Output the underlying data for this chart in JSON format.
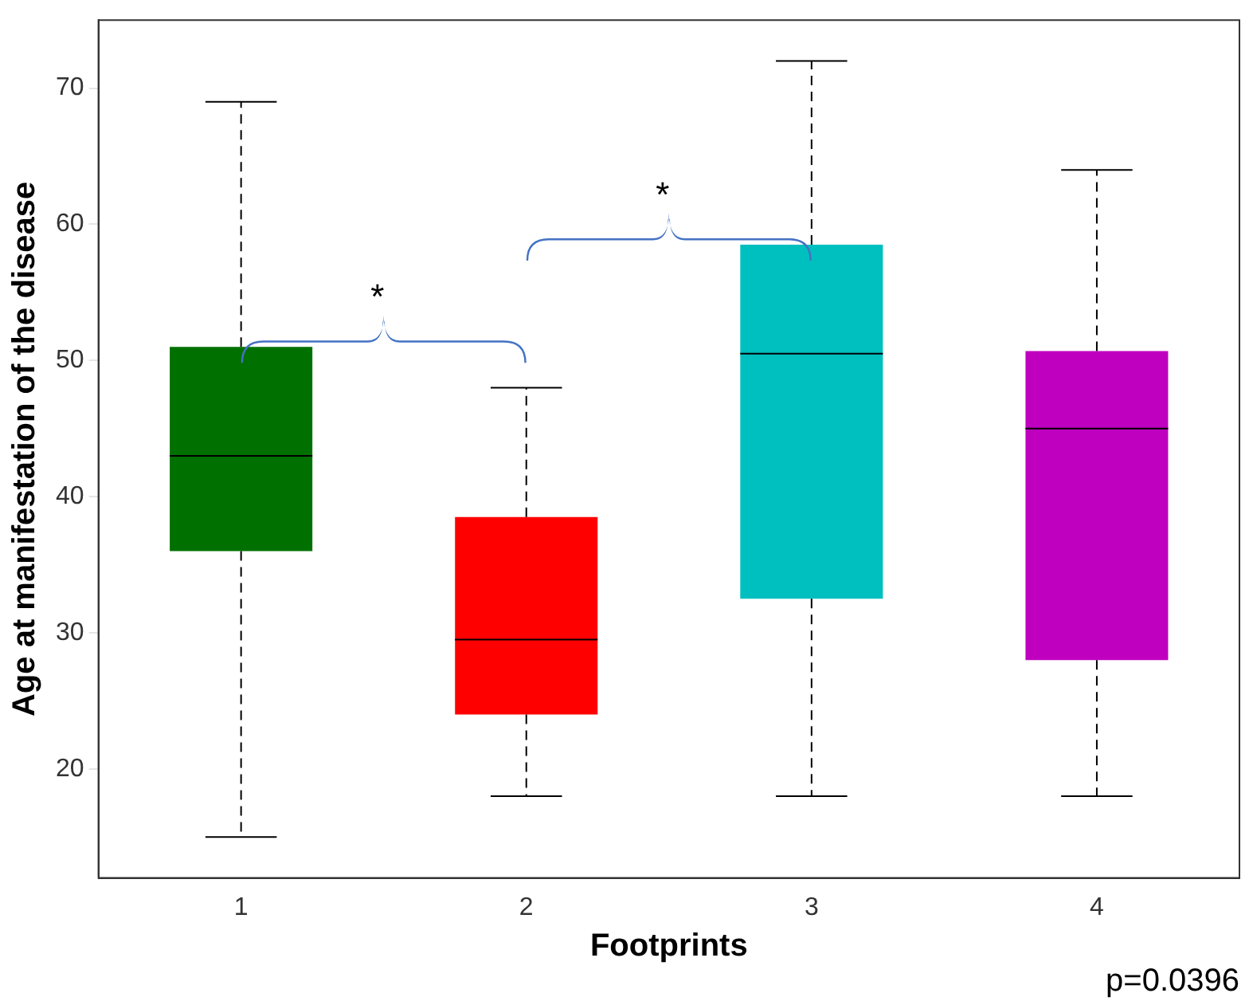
{
  "chart_data": {
    "type": "box",
    "xlabel": "Footprints",
    "ylabel": "Age at manifestation of the disease",
    "categories": [
      "1",
      "2",
      "3",
      "4"
    ],
    "colors": [
      "#007000",
      "#ff0000",
      "#00bfbf",
      "#bf00bf"
    ],
    "boxes": [
      {
        "low": 15,
        "q1": 36,
        "median": 43,
        "q3": 51,
        "high": 69
      },
      {
        "low": 18,
        "q1": 24,
        "median": 29.5,
        "q3": 38.5,
        "high": 48
      },
      {
        "low": 18,
        "q1": 32.5,
        "median": 50.5,
        "q3": 58.5,
        "high": 72
      },
      {
        "low": 18,
        "q1": 28,
        "median": 45,
        "q3": 50.7,
        "high": 64
      }
    ],
    "ylim": [
      12,
      75
    ],
    "yticks": [
      20,
      30,
      40,
      50,
      60,
      70
    ],
    "grid": false,
    "legend": false,
    "annotations": [
      "*",
      "*",
      "p=0.0396"
    ]
  }
}
